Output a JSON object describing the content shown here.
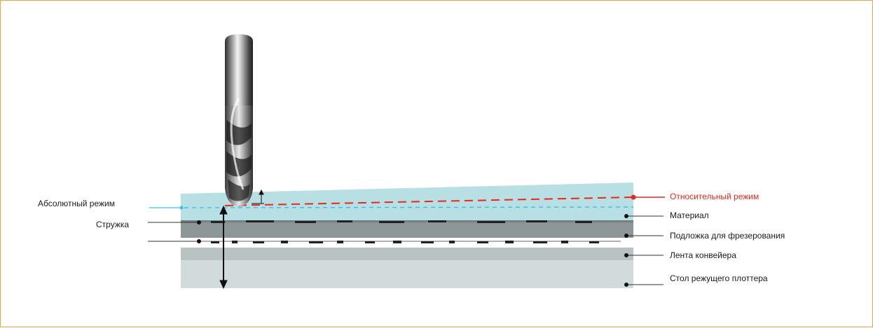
{
  "diagram": {
    "labels_left": {
      "absolute_mode": "Абсолютный режим",
      "chips": "Стружка"
    },
    "labels_right": {
      "relative_mode": "Относительный режим",
      "material": "Материал",
      "milling_underlay": "Подложка для фрезерования",
      "conveyor_belt": "Лента конвейера",
      "cutter_table": "Стол режущего плоттера"
    },
    "colors": {
      "frame_border": "#f0a24a",
      "material": "#b7dfe4",
      "chips_band": "#8a9191",
      "underlay": "#adb4b3",
      "conveyor": "#b9c2c3",
      "table": "#d2dbdc",
      "relative_line": "#e8261c",
      "absolute_line": "#33c3e8"
    }
  }
}
